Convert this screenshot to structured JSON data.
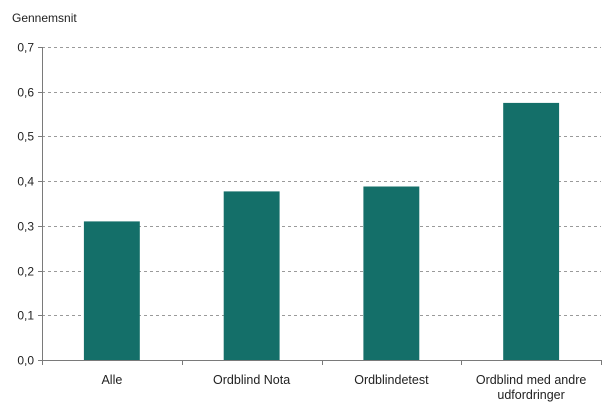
{
  "chart_data": {
    "type": "bar",
    "title": "",
    "ylabel": "Gennemsnit",
    "xlabel": "",
    "categories": [
      "Alle",
      "Ordblind Nota",
      "Ordblindetest",
      "Ordblind med andre udfordringer"
    ],
    "category_lines": [
      [
        "Alle"
      ],
      [
        "Ordblind Nota"
      ],
      [
        "Ordblindetest"
      ],
      [
        "Ordblind med andre",
        "udfordringer"
      ]
    ],
    "values": [
      0.31,
      0.377,
      0.388,
      0.575
    ],
    "ylim": [
      0,
      0.7
    ],
    "yticks": [
      0.0,
      0.1,
      0.2,
      0.3,
      0.4,
      0.5,
      0.6,
      0.7
    ],
    "ytick_labels": [
      "0,0",
      "0,1",
      "0,2",
      "0,3",
      "0,4",
      "0,5",
      "0,6",
      "0,7"
    ],
    "grid": true,
    "legend": "none",
    "bar_color": "#146f69"
  }
}
